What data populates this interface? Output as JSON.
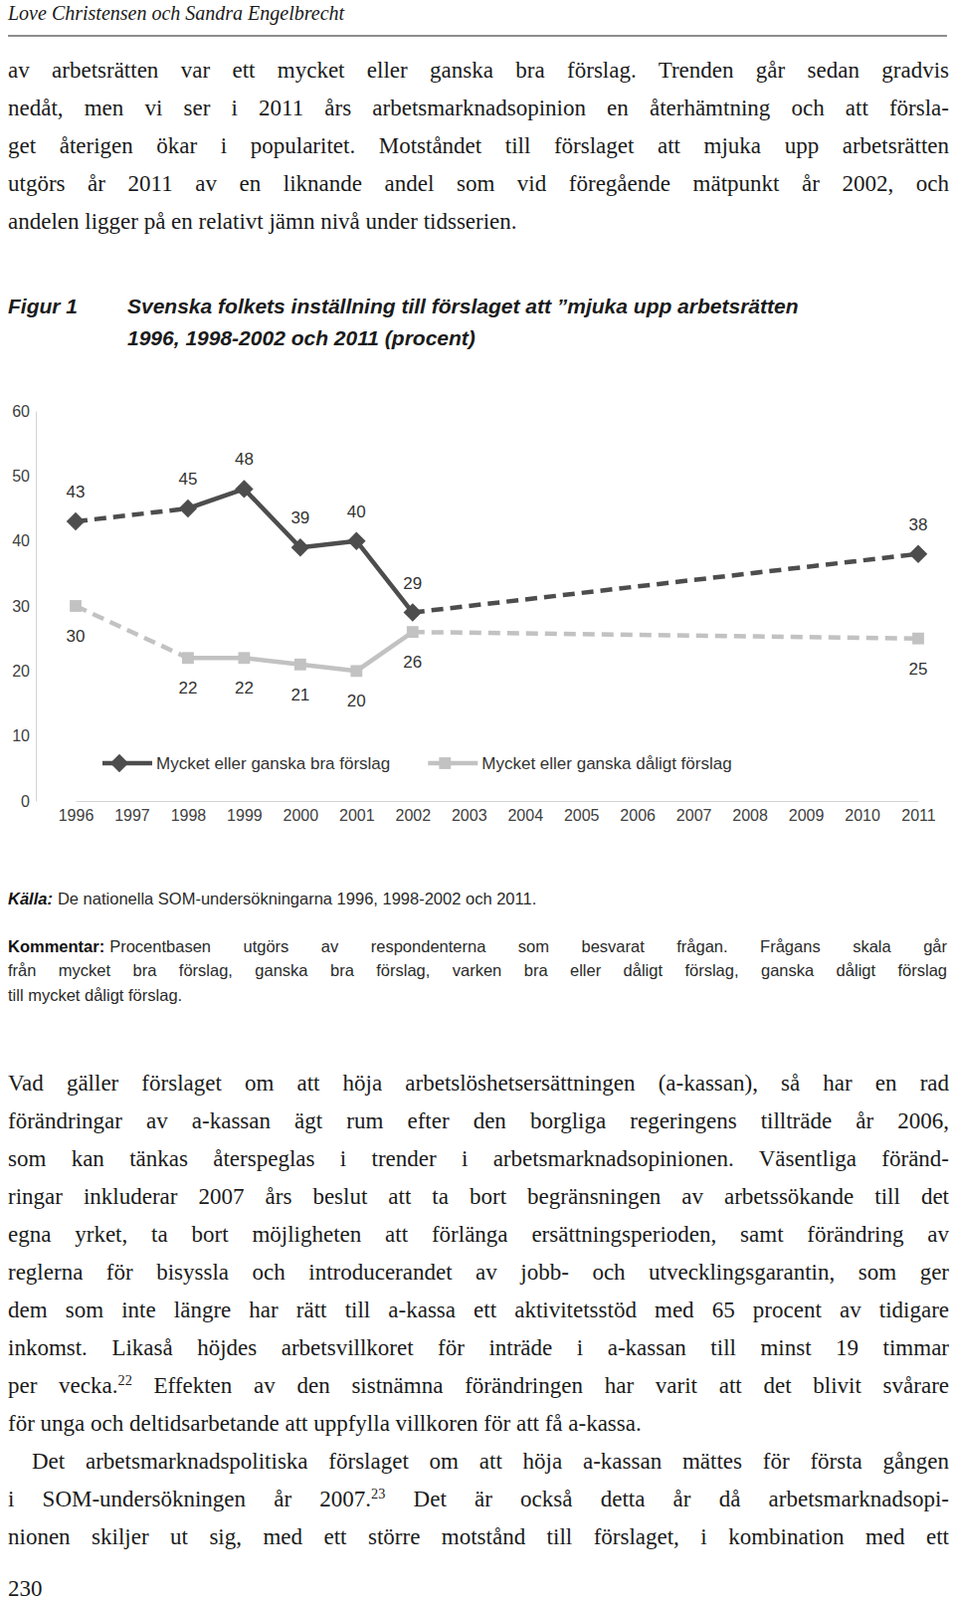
{
  "header": "Love Christensen och Sandra Engelbrecht",
  "paragraphs_before": [
    {
      "lines": [
        "av arbetsrätten var ett mycket eller ganska bra förslag. Trenden går sedan gradvis",
        "nedåt, men vi ser i 2011 års arbetsmarknadsopinion en återhämtning och att försla-",
        "get återigen ökar i popularitet. Motståndet till förslaget att mjuka upp arbetsrätten",
        "utgörs år 2011 av en liknande andel som vid föregående mätpunkt år 2002, och",
        "andelen ligger på en relativt jämn nivå under tidsserien."
      ]
    }
  ],
  "figure": {
    "label": "Figur 1"
  },
  "chart_data": {
    "type": "line",
    "title": "Svenska folkets inställning till förslaget att ”mjuka upp arbetsrätten",
    "subtitle": "1996, 1998-2002 och 2011 (procent)",
    "x": [
      1996,
      1998,
      1999,
      2000,
      2001,
      2002,
      2011
    ],
    "series": [
      {
        "name": "Mycket eller ganska bra förslag",
        "color": "#4d4d4d",
        "marker": "diamond",
        "values": [
          43,
          45,
          48,
          39,
          40,
          29,
          38
        ]
      },
      {
        "name": "Mycket eller ganska dåligt förslag",
        "color": "#c2c2c2",
        "marker": "square",
        "values": [
          30,
          22,
          22,
          21,
          20,
          26,
          25
        ]
      }
    ],
    "xlim": [
      1996,
      2011
    ],
    "xticks": [
      1996,
      1997,
      1998,
      1999,
      2000,
      2001,
      2002,
      2003,
      2004,
      2005,
      2006,
      2007,
      2008,
      2009,
      2010,
      2011
    ],
    "ylim": [
      0,
      60
    ],
    "yticks": [
      0,
      10,
      20,
      30,
      40,
      50,
      60
    ],
    "grid": false,
    "legend": "bottom",
    "data_labels": true
  },
  "source": {
    "label": "Källa:",
    "text": "De nationella SOM-undersökningarna 1996, 1998-2002 och 2011."
  },
  "comment": {
    "label": "Kommentar:",
    "lines": [
      "Procentbasen utgörs av respondenterna som besvarat frågan. Frågans skala går",
      "från mycket bra förslag, ganska bra förslag, varken bra eller dåligt förslag, ganska dåligt förslag",
      "till mycket dåligt förslag."
    ]
  },
  "paragraphs_after": [
    {
      "lines": [
        "Vad gäller förslaget om att höja arbetslöshetsersättningen (a-kassan), så har en rad",
        "förändringar av a-kassan ägt rum efter den borgliga regeringens tillträde år 2006,",
        "som kan tänkas återspeglas i trender i arbetsmarknadsopinionen. Väsentliga föränd-",
        "ringar inkluderar 2007 års beslut att ta bort begränsningen av arbetssökande till det",
        "egna yrket, ta bort möjligheten att förlänga ersättningsperioden, samt förändring av",
        "reglerna för bisyssla och introducerandet av jobb- och utvecklingsgarantin, som ger",
        "dem som inte längre har rätt till a-kassa ett aktivitetsstöd med 65 procent av tidigare",
        "inkomst. Likaså höjdes arbetsvillkoret för inträde i a-kassan till minst 19 timmar",
        {
          "text": "per vecka.",
          "note": "22",
          "rest": " Effekten av den sistnämna förändringen har varit att det blivit svårare"
        },
        "för unga och deltidsarbetande att uppfylla villkoren för att få a-kassa."
      ]
    },
    {
      "lines": [
        "Det arbetsmarknadspolitiska förslaget om att höja a-kassan mättes för första gången",
        {
          "text": "i SOM-undersökningen år 2007.",
          "note": "23",
          "rest": " Det är också detta år då arbetsmarknadsopi-"
        },
        "nionen skiljer ut sig, med ett större motstånd till förslaget, i kombination med ett"
      ]
    }
  ],
  "page_number": "230"
}
